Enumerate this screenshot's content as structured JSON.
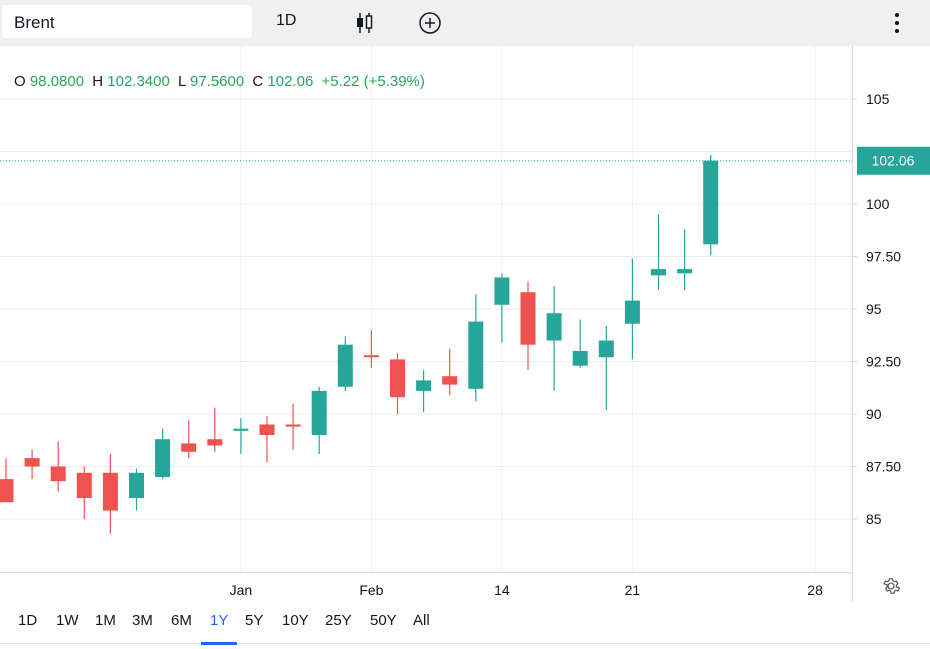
{
  "toolbar": {
    "symbol": "Brent",
    "interval": "1D",
    "icons": [
      "candles-icon",
      "add-compare-icon",
      "more-vertical-icon"
    ]
  },
  "legend": {
    "o_label": "O",
    "o_value": "98.0800",
    "h_label": "H",
    "h_value": "102.3400",
    "l_label": "L",
    "l_value": "97.5600",
    "c_label": "C",
    "c_value": "102.06",
    "change": "+5.22 (+5.39%)"
  },
  "colors": {
    "up": "#26a69a",
    "down": "#ef5350",
    "change_text": "#26a65b",
    "active_range": "#2962ff",
    "last_price_line": "#26a69a"
  },
  "ranges": [
    "1D",
    "1W",
    "1M",
    "3M",
    "6M",
    "1Y",
    "5Y",
    "10Y",
    "25Y",
    "50Y",
    "All"
  ],
  "active_range": "1Y",
  "chart_data": {
    "type": "candlestick",
    "ylim": [
      82.5,
      107.5
    ],
    "grid": true,
    "y_ticks": [
      85,
      87.5,
      90,
      92.5,
      95,
      97.5,
      100,
      105
    ],
    "y_tick_labels": [
      "85",
      "87.50",
      "90",
      "92.50",
      "95",
      "97.50",
      "100",
      "105"
    ],
    "x_tick_labels": [
      {
        "label": "Jan",
        "index": 9
      },
      {
        "label": "Feb",
        "index": 14
      },
      {
        "label": "14",
        "index": 19
      },
      {
        "label": "21",
        "index": 24
      },
      {
        "label": "28",
        "index": 31
      }
    ],
    "last_price": 102.06,
    "last_price_label": "102.06",
    "candles": [
      {
        "o": 86.9,
        "h": 87.9,
        "l": 85.8,
        "c": 85.8
      },
      {
        "o": 87.9,
        "h": 88.3,
        "l": 86.9,
        "c": 87.5
      },
      {
        "o": 87.5,
        "h": 88.7,
        "l": 86.3,
        "c": 86.8
      },
      {
        "o": 87.2,
        "h": 87.5,
        "l": 85.0,
        "c": 86.0
      },
      {
        "o": 87.2,
        "h": 88.1,
        "l": 84.3,
        "c": 85.4
      },
      {
        "o": 86.0,
        "h": 87.4,
        "l": 85.4,
        "c": 87.2
      },
      {
        "o": 87.0,
        "h": 89.3,
        "l": 86.9,
        "c": 88.8
      },
      {
        "o": 88.6,
        "h": 89.7,
        "l": 87.9,
        "c": 88.2
      },
      {
        "o": 88.8,
        "h": 90.3,
        "l": 88.2,
        "c": 88.5
      },
      {
        "o": 89.2,
        "h": 89.8,
        "l": 88.1,
        "c": 89.3
      },
      {
        "o": 89.5,
        "h": 89.9,
        "l": 87.7,
        "c": 89.0
      },
      {
        "o": 89.5,
        "h": 90.5,
        "l": 88.3,
        "c": 89.4
      },
      {
        "o": 89.0,
        "h": 91.3,
        "l": 88.1,
        "c": 91.1
      },
      {
        "o": 91.3,
        "h": 93.7,
        "l": 91.1,
        "c": 93.3
      },
      {
        "o": 92.8,
        "h": 94.0,
        "l": 92.2,
        "c": 92.7
      },
      {
        "o": 92.6,
        "h": 92.9,
        "l": 90.0,
        "c": 90.8
      },
      {
        "o": 91.1,
        "h": 92.1,
        "l": 90.1,
        "c": 91.6
      },
      {
        "o": 91.8,
        "h": 93.1,
        "l": 90.9,
        "c": 91.4
      },
      {
        "o": 91.2,
        "h": 95.7,
        "l": 90.6,
        "c": 94.4
      },
      {
        "o": 95.2,
        "h": 96.7,
        "l": 93.4,
        "c": 96.5
      },
      {
        "o": 95.8,
        "h": 96.3,
        "l": 92.1,
        "c": 93.3
      },
      {
        "o": 93.5,
        "h": 96.1,
        "l": 91.1,
        "c": 94.8
      },
      {
        "o": 92.3,
        "h": 94.5,
        "l": 92.2,
        "c": 93.0
      },
      {
        "o": 92.7,
        "h": 94.2,
        "l": 90.2,
        "c": 93.5
      },
      {
        "o": 94.3,
        "h": 97.4,
        "l": 92.6,
        "c": 95.4
      },
      {
        "o": 96.6,
        "h": 99.5,
        "l": 95.9,
        "c": 96.9
      },
      {
        "o": 96.7,
        "h": 98.8,
        "l": 95.9,
        "c": 96.9
      },
      {
        "o": 98.08,
        "h": 102.34,
        "l": 97.56,
        "c": 102.06
      }
    ]
  }
}
